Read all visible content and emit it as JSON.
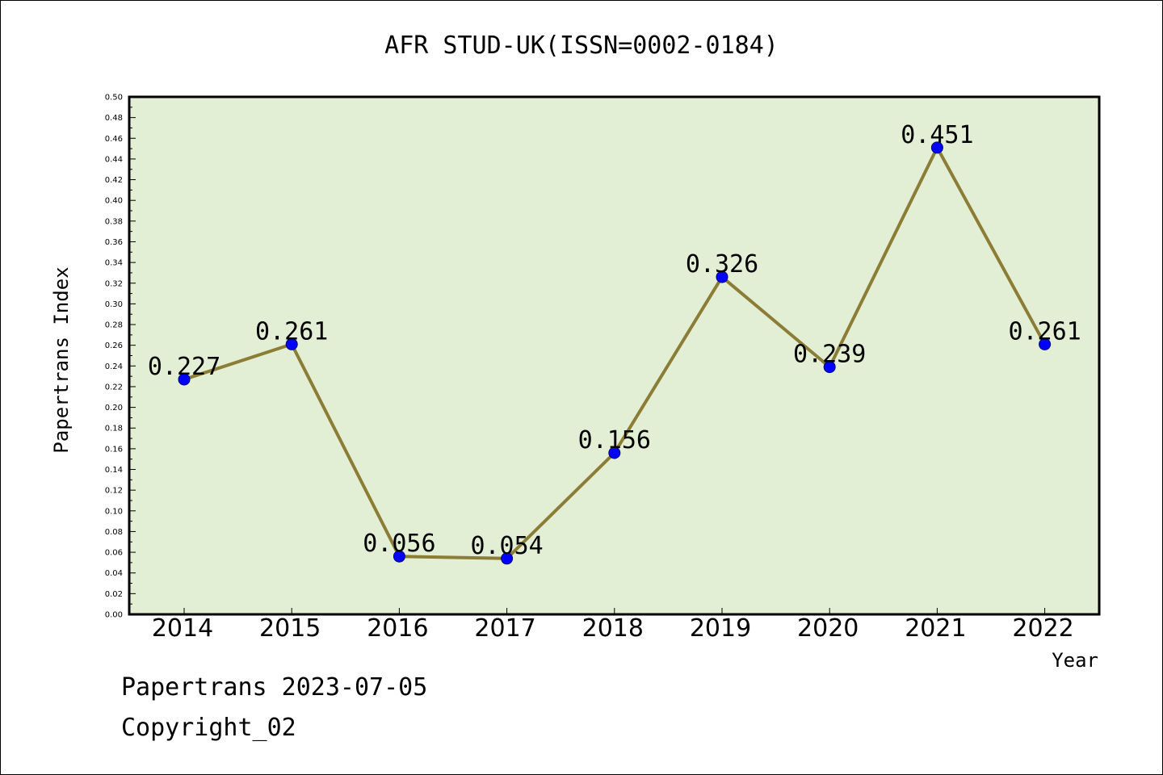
{
  "chart_data": {
    "type": "line",
    "title": "AFR STUD-UK(ISSN=0002-0184)",
    "xlabel": "Year",
    "ylabel": "Papertrans Index",
    "categories": [
      "2014",
      "2015",
      "2016",
      "2017",
      "2018",
      "2019",
      "2020",
      "2021",
      "2022"
    ],
    "series": [
      {
        "values": [
          0.227,
          0.261,
          0.056,
          0.054,
          0.156,
          0.326,
          0.239,
          0.451,
          0.261
        ],
        "data_labels": [
          "0.227",
          "0.261",
          "0.056",
          "0.054",
          "0.156",
          "0.326",
          "0.239",
          "0.451",
          "0.261"
        ]
      }
    ],
    "ylim": [
      0.0,
      0.5
    ],
    "ytick_labels": [
      "0.00",
      "0.02",
      "0.04",
      "0.06",
      "0.08",
      "0.10",
      "0.12",
      "0.14",
      "0.16",
      "0.18",
      "0.20",
      "0.22",
      "0.24",
      "0.26",
      "0.28",
      "0.30",
      "0.32",
      "0.34",
      "0.36",
      "0.38",
      "0.40",
      "0.42",
      "0.44",
      "0.46",
      "0.48",
      "0.50"
    ],
    "grid": false,
    "legend": "none",
    "colors": {
      "plot_background": "#e2efd5",
      "line": "#8b7d35",
      "marker": "#0000ff"
    }
  },
  "footer": {
    "line1": "Papertrans 2023-07-05",
    "line2": "Copyright_02"
  }
}
